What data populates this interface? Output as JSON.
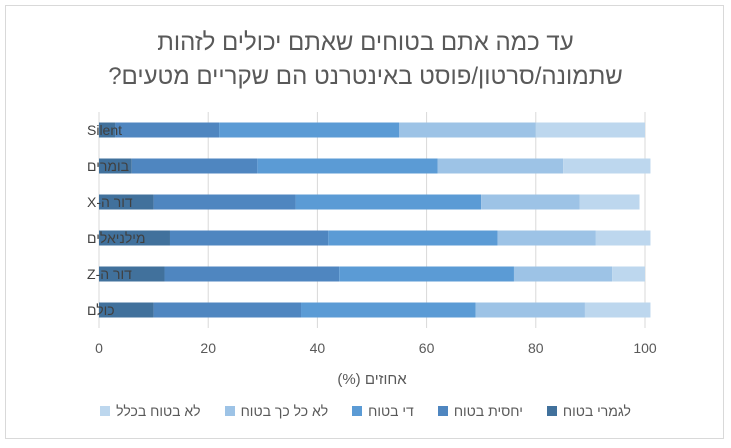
{
  "title_line1": "עד כמה אתם בטוחים שאתם יכולים לזהות",
  "title_line2": "שתמונה/סרטון/פוסט באינטרנט הם שקריים מטעים?",
  "chart_data": {
    "type": "bar",
    "orientation": "horizontal",
    "stacked": true,
    "title": "עד כמה אתם בטוחים שאתם יכולים לזהות שתמונה/סרטון/פוסט באינטרנט הם שקריים מטעים?",
    "xlabel": "אחוזים (%)",
    "ylabel": "",
    "xlim": [
      0,
      100
    ],
    "xticks": [
      0,
      20,
      40,
      60,
      80,
      100
    ],
    "grid": true,
    "legend_position": "bottom",
    "categories": [
      "Silent",
      "בומרים",
      "דור ה-X",
      "מילניאלים",
      "דור ה-Z",
      "כולם"
    ],
    "series": [
      {
        "name": "לגמרי בטוח",
        "color": "#41719c",
        "values": [
          3,
          6,
          10,
          13,
          12,
          10
        ]
      },
      {
        "name": "יחסית בטוח",
        "color": "#4f86c0",
        "values": [
          19,
          23,
          26,
          29,
          32,
          27
        ]
      },
      {
        "name": "די בטוח",
        "color": "#5b9bd5",
        "values": [
          33,
          33,
          34,
          31,
          32,
          32
        ]
      },
      {
        "name": "לא כל כך בטוח",
        "color": "#9dc3e6",
        "values": [
          25,
          23,
          18,
          18,
          18,
          20
        ]
      },
      {
        "name": "לא בטוח בכלל",
        "color": "#bdd7ee",
        "values": [
          20,
          16,
          11,
          10,
          6,
          12
        ]
      }
    ]
  }
}
